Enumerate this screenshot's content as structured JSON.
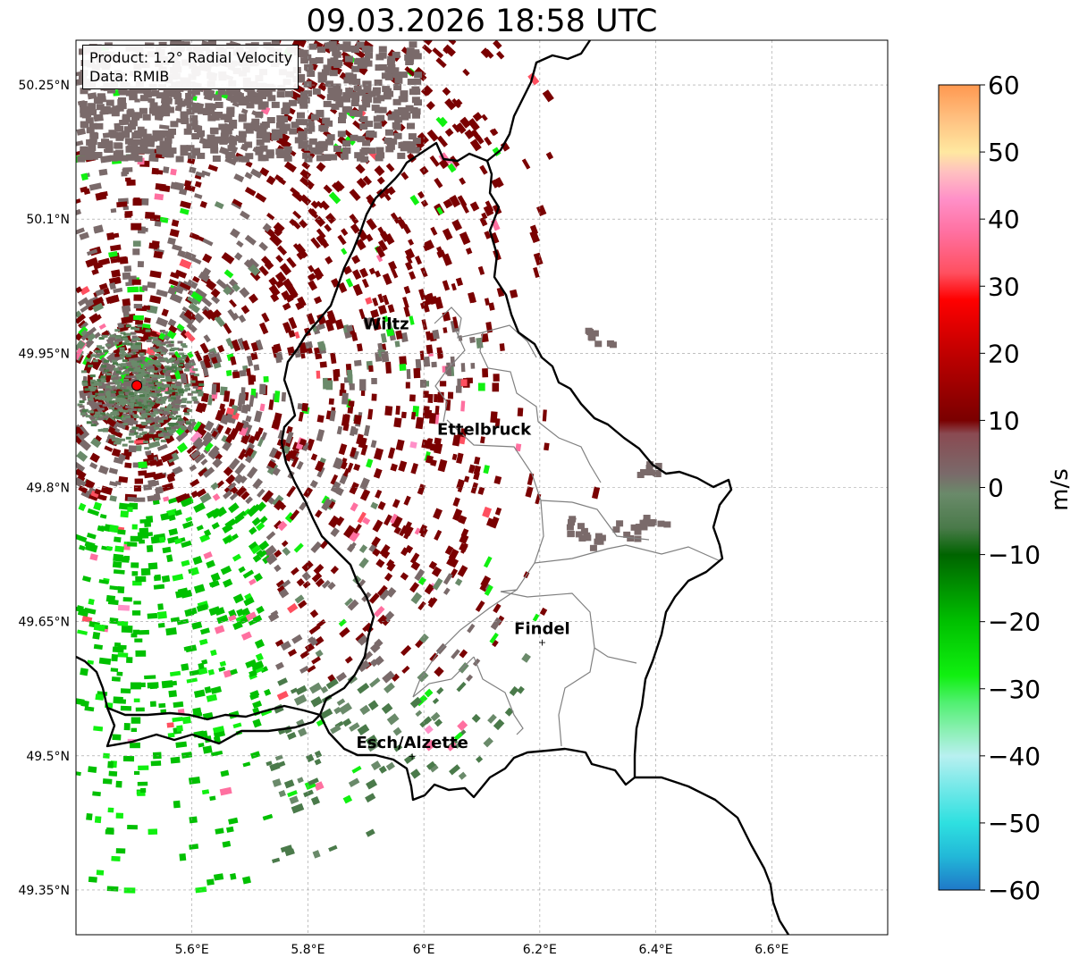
{
  "title": "09.03.2026 18:58 UTC",
  "info": {
    "product": "Product: 1.2° Radial Velocity",
    "data_source": "Data: RMIB"
  },
  "map": {
    "lon_range": [
      5.4,
      6.8
    ],
    "lat_range": [
      49.3,
      50.3
    ],
    "lat_ticks": [
      {
        "value": 50.25,
        "label": "50.25°N"
      },
      {
        "value": 50.1,
        "label": "50.1°N"
      },
      {
        "value": 49.95,
        "label": "49.95°N"
      },
      {
        "value": 49.8,
        "label": "49.8°N"
      },
      {
        "value": 49.65,
        "label": "49.65°N"
      },
      {
        "value": 49.5,
        "label": "49.5°N"
      },
      {
        "value": 49.35,
        "label": "49.35°N"
      }
    ],
    "lon_ticks": [
      {
        "value": 5.6,
        "label": "5.6°E"
      },
      {
        "value": 5.8,
        "label": "5.8°E"
      },
      {
        "value": 6.0,
        "label": "6°E"
      },
      {
        "value": 6.2,
        "label": "6.2°E"
      },
      {
        "value": 6.4,
        "label": "6.4°E"
      },
      {
        "value": 6.6,
        "label": "6.6°E"
      }
    ],
    "radar_site": {
      "lon": 5.505,
      "lat": 49.914,
      "color": "#ff0000"
    },
    "cities": [
      {
        "name": "Wiltz",
        "lon": 5.935,
        "lat": 49.968,
        "marker": false
      },
      {
        "name": "Ettelbruck",
        "lon": 6.104,
        "lat": 49.85,
        "marker": false
      },
      {
        "name": "Findel",
        "lon": 6.204,
        "lat": 49.627,
        "marker": true
      },
      {
        "name": "Esch/Alzette",
        "lon": 5.98,
        "lat": 49.5,
        "marker": true
      }
    ]
  },
  "colorbar": {
    "label": "m/s",
    "range": [
      -60,
      60
    ],
    "ticks": [
      {
        "value": 60,
        "label": "60"
      },
      {
        "value": 50,
        "label": "50"
      },
      {
        "value": 40,
        "label": "40"
      },
      {
        "value": 30,
        "label": "30"
      },
      {
        "value": 20,
        "label": "20"
      },
      {
        "value": 10,
        "label": "10"
      },
      {
        "value": 0,
        "label": "0"
      },
      {
        "value": -10,
        "label": "−10"
      },
      {
        "value": -20,
        "label": "−20"
      },
      {
        "value": -30,
        "label": "−30"
      },
      {
        "value": -40,
        "label": "−40"
      },
      {
        "value": -50,
        "label": "−50"
      },
      {
        "value": -60,
        "label": "−60"
      }
    ],
    "stops": [
      {
        "value": -60,
        "color": "#1f78c8"
      },
      {
        "value": -55,
        "color": "#22b8d8"
      },
      {
        "value": -50,
        "color": "#2ee0e0"
      },
      {
        "value": -45,
        "color": "#70e8e8"
      },
      {
        "value": -40,
        "color": "#b8f0f0"
      },
      {
        "value": -36,
        "color": "#88f0b0"
      },
      {
        "value": -32,
        "color": "#50f070"
      },
      {
        "value": -28,
        "color": "#10f010"
      },
      {
        "value": -20,
        "color": "#00c000"
      },
      {
        "value": -10,
        "color": "#006400"
      },
      {
        "value": -6,
        "color": "#4a7a4a"
      },
      {
        "value": -1,
        "color": "#6a8a6a"
      },
      {
        "value": 2,
        "color": "#7a6a6a"
      },
      {
        "value": 8,
        "color": "#8a4a52"
      },
      {
        "value": 10,
        "color": "#7a0000"
      },
      {
        "value": 20,
        "color": "#c00000"
      },
      {
        "value": 28,
        "color": "#ff0000"
      },
      {
        "value": 32,
        "color": "#ff5060"
      },
      {
        "value": 38,
        "color": "#ff70a0"
      },
      {
        "value": 43,
        "color": "#ff90c8"
      },
      {
        "value": 47,
        "color": "#ffc0c0"
      },
      {
        "value": 50,
        "color": "#ffe8a0"
      },
      {
        "value": 55,
        "color": "#ffc080"
      },
      {
        "value": 60,
        "color": "#ff9850"
      }
    ]
  }
}
